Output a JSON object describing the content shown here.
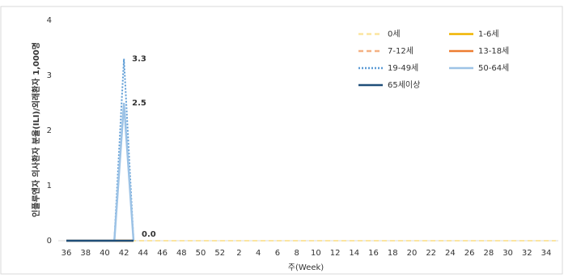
{
  "chart_data": {
    "type": "line",
    "y_label": "인플루엔자 의사환자 분율(ILI)/외래환자 1,000명",
    "x_label": "주(Week)",
    "categories": [
      "36",
      null,
      "38",
      null,
      "40",
      null,
      "42",
      null,
      "44",
      null,
      "46",
      null,
      "48",
      null,
      "50",
      null,
      "52",
      null,
      "2",
      null,
      "4",
      null,
      "6",
      null,
      "8",
      null,
      "10",
      null,
      "12",
      null,
      "14",
      null,
      "16",
      null,
      "18",
      null,
      "20",
      null,
      "22",
      null,
      "24",
      null,
      "26",
      null,
      "28",
      null,
      "30",
      null,
      "32",
      null,
      "34",
      null
    ],
    "ylim": [
      0,
      4
    ],
    "yticks": [
      0,
      1,
      2,
      3,
      4
    ],
    "series": [
      {
        "name": "0세",
        "color": "#fbe5a0",
        "dash": "dashed",
        "values": [
          0,
          0,
          0,
          0,
          0,
          0,
          0,
          0,
          0,
          0,
          0,
          0,
          0,
          0,
          0,
          0,
          0,
          0,
          0,
          0,
          0,
          0,
          0,
          0,
          0,
          0,
          0,
          0,
          0,
          0,
          0,
          0,
          0,
          0,
          0,
          0,
          0,
          0,
          0,
          0,
          0,
          0,
          0,
          0,
          0,
          0,
          0,
          0,
          0,
          0,
          0,
          0
        ]
      },
      {
        "name": "1-6세",
        "color": "#f0b400",
        "dash": "solid",
        "values": [
          0,
          0,
          0,
          0,
          0,
          0,
          0,
          0,
          null,
          null,
          null,
          null,
          null,
          null,
          null,
          null,
          null,
          null,
          null,
          null,
          null,
          null,
          null,
          null,
          null,
          null,
          null,
          null,
          null,
          null,
          null,
          null,
          null,
          null,
          null,
          null,
          null,
          null,
          null,
          null,
          null,
          null,
          null,
          null,
          null,
          null,
          null,
          null,
          null,
          null,
          null,
          null
        ]
      },
      {
        "name": "7-12세",
        "color": "#f4b183",
        "dash": "dashed",
        "values": [
          0,
          0,
          0,
          0,
          0,
          0,
          0,
          0,
          null,
          null,
          null,
          null,
          null,
          null,
          null,
          null,
          null,
          null,
          null,
          null,
          null,
          null,
          null,
          null,
          null,
          null,
          null,
          null,
          null,
          null,
          null,
          null,
          null,
          null,
          null,
          null,
          null,
          null,
          null,
          null,
          null,
          null,
          null,
          null,
          null,
          null,
          null,
          null,
          null,
          null,
          null,
          null
        ]
      },
      {
        "name": "13-18세",
        "color": "#ed7d31",
        "dash": "solid",
        "values": [
          0,
          0,
          0,
          0,
          0,
          0,
          0,
          0,
          null,
          null,
          null,
          null,
          null,
          null,
          null,
          null,
          null,
          null,
          null,
          null,
          null,
          null,
          null,
          null,
          null,
          null,
          null,
          null,
          null,
          null,
          null,
          null,
          null,
          null,
          null,
          null,
          null,
          null,
          null,
          null,
          null,
          null,
          null,
          null,
          null,
          null,
          null,
          null,
          null,
          null,
          null,
          null
        ]
      },
      {
        "name": "19-49세",
        "color": "#5b9bd5",
        "dash": "dotted",
        "values": [
          0,
          0,
          0,
          0,
          0,
          0,
          3.3,
          0,
          null,
          null,
          null,
          null,
          null,
          null,
          null,
          null,
          null,
          null,
          null,
          null,
          null,
          null,
          null,
          null,
          null,
          null,
          null,
          null,
          null,
          null,
          null,
          null,
          null,
          null,
          null,
          null,
          null,
          null,
          null,
          null,
          null,
          null,
          null,
          null,
          null,
          null,
          null,
          null,
          null,
          null,
          null,
          null
        ],
        "value_labels": [
          null,
          null,
          null,
          null,
          null,
          null,
          "3.3",
          null,
          null,
          null,
          null,
          null,
          null,
          null,
          null,
          null,
          null,
          null,
          null,
          null,
          null,
          null,
          null,
          null,
          null,
          null,
          null,
          null,
          null,
          null,
          null,
          null,
          null,
          null,
          null,
          null,
          null,
          null,
          null,
          null,
          null,
          null,
          null,
          null,
          null,
          null,
          null,
          null,
          null,
          null,
          null,
          null
        ]
      },
      {
        "name": "50-64세",
        "color": "#9dc3e6",
        "dash": "solid",
        "values": [
          0,
          0,
          0,
          0,
          0,
          0,
          2.5,
          0,
          null,
          null,
          null,
          null,
          null,
          null,
          null,
          null,
          null,
          null,
          null,
          null,
          null,
          null,
          null,
          null,
          null,
          null,
          null,
          null,
          null,
          null,
          null,
          null,
          null,
          null,
          null,
          null,
          null,
          null,
          null,
          null,
          null,
          null,
          null,
          null,
          null,
          null,
          null,
          null,
          null,
          null,
          null,
          null
        ],
        "value_labels": [
          null,
          null,
          null,
          null,
          null,
          null,
          "2.5",
          "0.0",
          null,
          null,
          null,
          null,
          null,
          null,
          null,
          null,
          null,
          null,
          null,
          null,
          null,
          null,
          null,
          null,
          null,
          null,
          null,
          null,
          null,
          null,
          null,
          null,
          null,
          null,
          null,
          null,
          null,
          null,
          null,
          null,
          null,
          null,
          null,
          null,
          null,
          null,
          null,
          null,
          null,
          null,
          null,
          null
        ]
      },
      {
        "name": "65세이상",
        "color": "#1f4e79",
        "dash": "solid",
        "values": [
          0,
          0,
          0,
          0,
          0,
          0,
          0,
          0,
          null,
          null,
          null,
          null,
          null,
          null,
          null,
          null,
          null,
          null,
          null,
          null,
          null,
          null,
          null,
          null,
          null,
          null,
          null,
          null,
          null,
          null,
          null,
          null,
          null,
          null,
          null,
          null,
          null,
          null,
          null,
          null,
          null,
          null,
          null,
          null,
          null,
          null,
          null,
          null,
          null,
          null,
          null,
          null
        ]
      }
    ]
  }
}
